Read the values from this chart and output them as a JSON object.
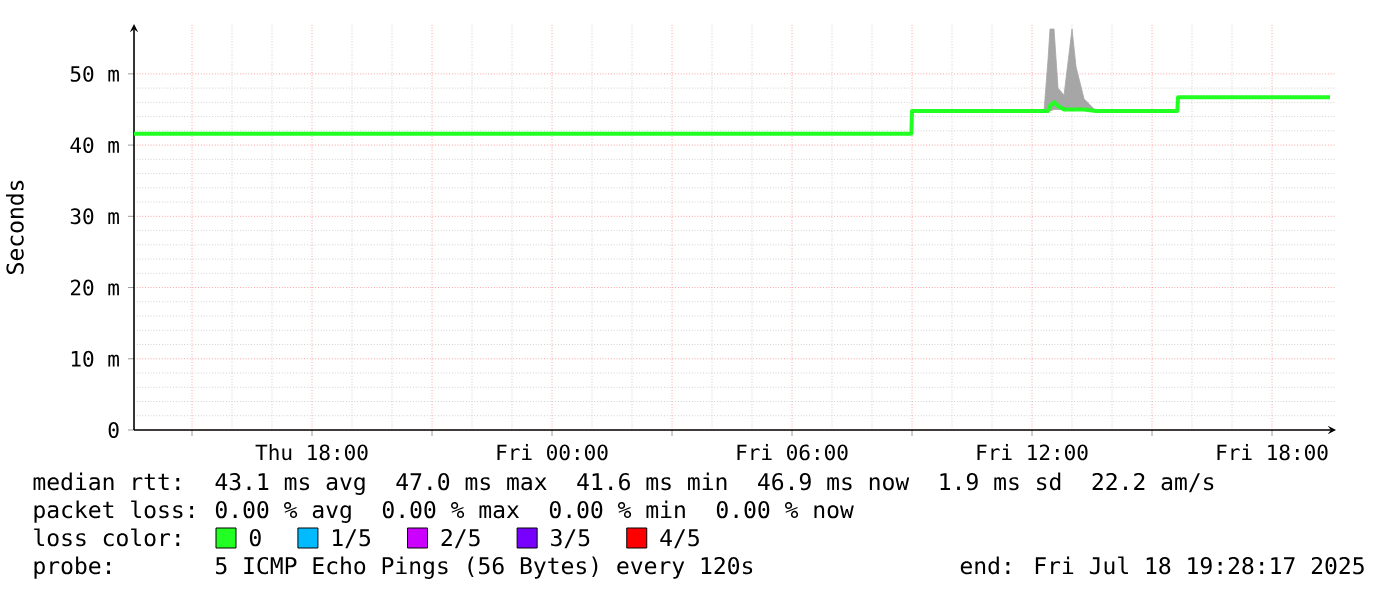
{
  "chart_data": {
    "type": "line",
    "ylabel": "Seconds",
    "legend_title": "loss color:",
    "legend": "bottom",
    "grid": true,
    "xlim": [
      "2025-07-17T13:33",
      "2025-07-18T19:36"
    ],
    "xticks": [
      {
        "value": "2025-07-17T15:00",
        "label": null
      },
      {
        "value": "2025-07-17T18:00",
        "label": "Thu 18:00"
      },
      {
        "value": "2025-07-17T21:00",
        "label": null
      },
      {
        "value": "2025-07-18T00:00",
        "label": "Fri 00:00"
      },
      {
        "value": "2025-07-18T03:00",
        "label": null
      },
      {
        "value": "2025-07-18T06:00",
        "label": "Fri 06:00"
      },
      {
        "value": "2025-07-18T09:00",
        "label": null
      },
      {
        "value": "2025-07-18T12:00",
        "label": "Fri 12:00"
      },
      {
        "value": "2025-07-18T15:00",
        "label": null
      },
      {
        "value": "2025-07-18T18:00",
        "label": "Fri 18:00"
      }
    ],
    "ylim": [
      0,
      57
    ],
    "yticks": [
      0,
      {
        "value": 10,
        "label": "10 m"
      },
      {
        "value": 20,
        "label": "20 m"
      },
      {
        "value": 30,
        "label": "30 m"
      },
      {
        "value": 40,
        "label": "40 m"
      },
      {
        "value": 50,
        "label": "50 m"
      }
    ],
    "series": [
      {
        "name": "0",
        "color": "#22ff22",
        "x": [
          "2025-07-17T13:33",
          "2025-07-17T18:00",
          "2025-07-18T00:00",
          "2025-07-18T06:00",
          "2025-07-18T08:59",
          "2025-07-18T09:00",
          "2025-07-18T12:18",
          "2025-07-18T12:24",
          "2025-07-18T12:27",
          "2025-07-18T12:33",
          "2025-07-18T12:39",
          "2025-07-18T12:48",
          "2025-07-18T13:00",
          "2025-07-18T13:06",
          "2025-07-18T13:18",
          "2025-07-18T13:36",
          "2025-07-18T15:38",
          "2025-07-18T15:39",
          "2025-07-18T19:27"
        ],
        "values": [
          41.6,
          41.6,
          41.6,
          41.6,
          41.6,
          44.8,
          44.8,
          44.8,
          45.5,
          46.0,
          45.5,
          45.0,
          45.0,
          45.0,
          45.0,
          44.8,
          44.8,
          46.7,
          46.7
        ],
        "lower": [
          41.6,
          41.6,
          41.6,
          41.6,
          41.6,
          44.8,
          44.8,
          44.8,
          44.8,
          45.0,
          45.0,
          45.0,
          45.0,
          45.0,
          45.0,
          44.8,
          44.8,
          46.7,
          46.7
        ],
        "upper": [
          41.6,
          41.6,
          41.6,
          41.6,
          41.6,
          44.8,
          44.8,
          52,
          56.3,
          56.3,
          48,
          47,
          56.3,
          51,
          46.5,
          44.8,
          44.8,
          46.7,
          46.7
        ]
      },
      {
        "name": "1/5",
        "color": "#00bbff"
      },
      {
        "name": "2/5",
        "color": "#cc00ff"
      },
      {
        "name": "3/5",
        "color": "#7700ff"
      },
      {
        "name": "4/5",
        "color": "#ff0000"
      }
    ],
    "annotations": [
      "median rtt:",
      "43.1 ms avg",
      "47.0 ms max",
      "41.6 ms min",
      "46.9 ms now",
      "1.9 ms sd",
      "22.2   am/s",
      "packet loss:",
      "0.00 % avg",
      "0.00 % max",
      "0.00 % min",
      "0.00 % now",
      "probe:",
      "5 ICMP Echo Pings (56 Bytes) every 120s",
      "end: Fri Jul 18 19:28:17 2025"
    ]
  }
}
